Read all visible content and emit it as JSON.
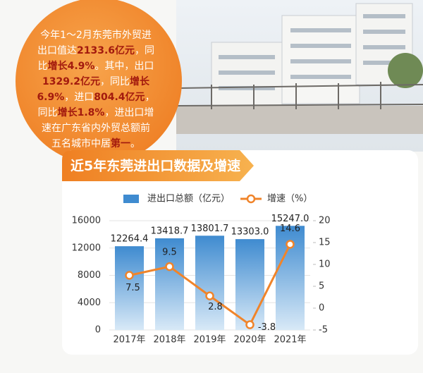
{
  "callout": {
    "lines": [
      [
        "今年1～2月东莞市外贸进"
      ],
      [
        "出口值达",
        "2133.6亿元",
        "，同"
      ],
      [
        "比",
        "增长4.9%",
        "。其中，出口"
      ],
      [
        "",
        "1329.2亿元",
        "，同比",
        "增长"
      ],
      [
        "",
        "6.9%",
        "，进口",
        "804.4亿元",
        "，"
      ],
      [
        "同比",
        "增长1.8%",
        "，进出口增"
      ],
      [
        "速在广东省内外贸总额前"
      ],
      [
        "五名城市中居",
        "第一",
        "。"
      ]
    ]
  },
  "chart_data": {
    "type": "bar",
    "title": "近5年东莞进出口数据及增速",
    "categories": [
      "2017年",
      "2018年",
      "2019年",
      "2020年",
      "2021年"
    ],
    "series": [
      {
        "name": "进出口总额（亿元）",
        "type": "bar",
        "color": "#3f8bd0",
        "values": [
          12264.4,
          13418.7,
          13801.7,
          13303.0,
          15247.0
        ],
        "value_labels": [
          "12264.4",
          "13418.7",
          "13801.7",
          "13303.0",
          "15247.0"
        ]
      },
      {
        "name": "增速（%）",
        "type": "line",
        "axis": "y2",
        "color": "#f0842a",
        "values": [
          7.5,
          9.5,
          2.8,
          -3.8,
          14.6
        ]
      }
    ],
    "ylim": [
      0,
      16000
    ],
    "yticks": [
      0,
      4000,
      8000,
      12000,
      16000
    ],
    "y2lim": [
      -5,
      20
    ],
    "y2ticks": [
      -5,
      0,
      5,
      10,
      15,
      20
    ]
  }
}
